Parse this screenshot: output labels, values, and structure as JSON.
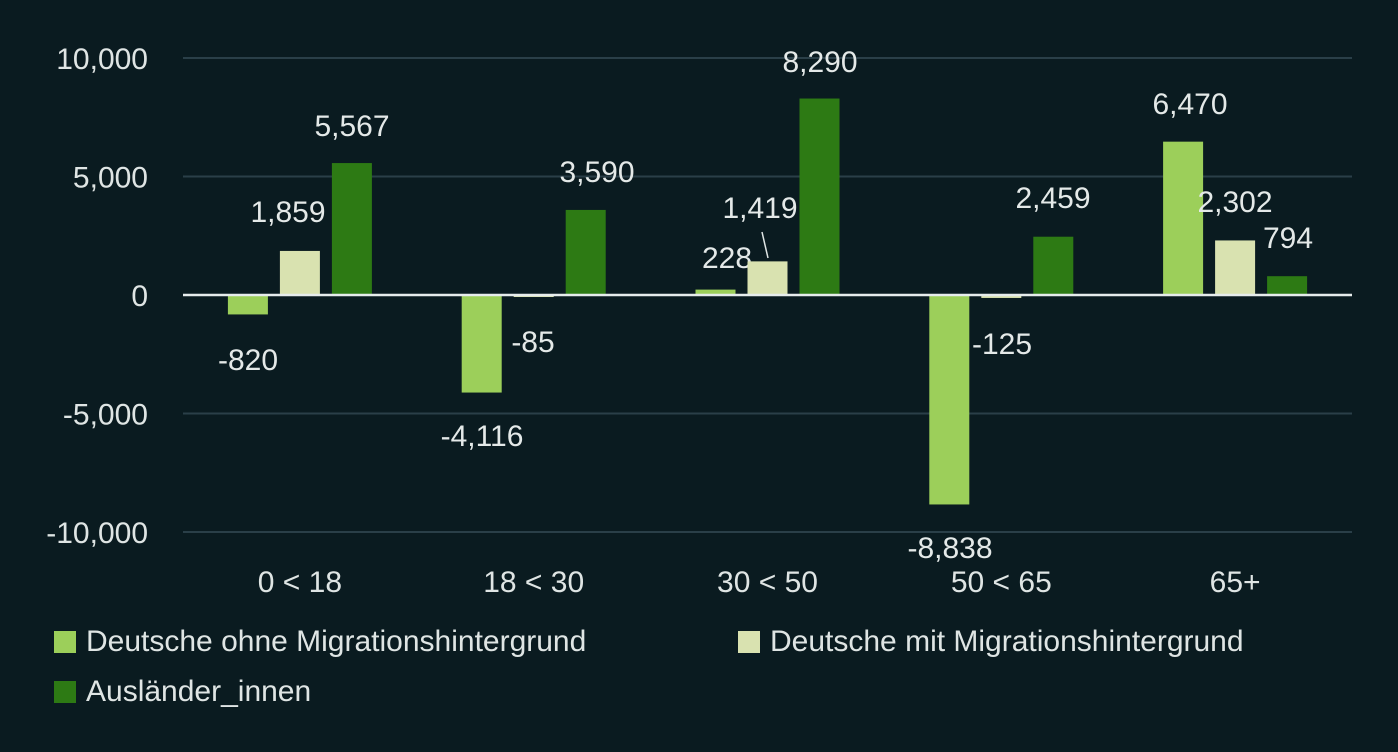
{
  "chart_data": {
    "type": "bar",
    "categories": [
      "0 < 18",
      "18 < 30",
      "30 < 50",
      "50 < 65",
      "65+"
    ],
    "series": [
      {
        "name": "Deutsche ohne Migrationshintergrund",
        "values": [
          -820,
          -4116,
          228,
          -8838,
          6470
        ],
        "labels": [
          "-820",
          "-4,116",
          "228",
          "-8,838",
          "6,470"
        ],
        "color": "#9ccf5a"
      },
      {
        "name": "Deutsche mit Migrationshintergrund",
        "values": [
          1859,
          -85,
          1419,
          -125,
          2302
        ],
        "labels": [
          "1,859",
          "-85",
          "1,419",
          "-125",
          "2,302"
        ],
        "color": "#d9e2b0"
      },
      {
        "name": "Ausländer_innen",
        "values": [
          5567,
          3590,
          8290,
          2459,
          794
        ],
        "labels": [
          "5,567",
          "3,590",
          "8,290",
          "2,459",
          "794"
        ],
        "color": "#2d7a14"
      }
    ],
    "yticks": [
      10000,
      5000,
      0,
      -5000,
      -10000
    ],
    "ytick_labels": [
      "10,000",
      "5,000",
      "0",
      "-5,000",
      "-10,000"
    ],
    "ylim": [
      -10000,
      10000
    ],
    "grid": true,
    "legend_position": "bottom",
    "background": "#0a1b20"
  }
}
